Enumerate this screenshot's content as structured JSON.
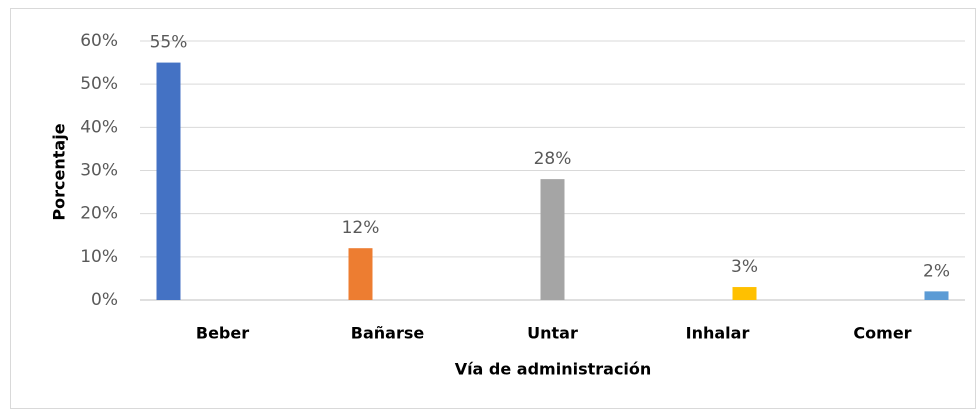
{
  "chart_data": {
    "type": "bar",
    "categories": [
      "Beber",
      "Bañarse",
      "Untar",
      "Inhalar",
      "Comer"
    ],
    "x_label": "Vía de administración",
    "y_label": "Porcentaje",
    "series": [
      {
        "color": "#4472c4",
        "values": [
          55,
          null,
          null,
          null,
          null
        ],
        "value_labels": [
          "55%",
          null,
          null,
          null,
          null
        ]
      },
      {
        "color": "#ed7d31",
        "values": [
          null,
          12,
          null,
          null,
          null
        ],
        "value_labels": [
          null,
          "12%",
          null,
          null,
          null
        ]
      },
      {
        "color": "#a5a5a5",
        "values": [
          null,
          null,
          28,
          null,
          null
        ],
        "value_labels": [
          null,
          null,
          "28%",
          null,
          null
        ]
      },
      {
        "color": "#ffc000",
        "values": [
          null,
          null,
          null,
          3,
          null
        ],
        "value_labels": [
          null,
          null,
          null,
          "3%",
          null
        ]
      },
      {
        "color": "#5b9bd5",
        "values": [
          null,
          null,
          null,
          null,
          2
        ],
        "value_labels": [
          null,
          null,
          null,
          null,
          "2%"
        ]
      }
    ],
    "ylim": [
      0,
      60
    ],
    "yticks": [
      {
        "value": 0,
        "label": "0%"
      },
      {
        "value": 10,
        "label": "10%"
      },
      {
        "value": 20,
        "label": "20%"
      },
      {
        "value": 30,
        "label": "30%"
      },
      {
        "value": 40,
        "label": "40%"
      },
      {
        "value": 50,
        "label": "50%"
      },
      {
        "value": 60,
        "label": "60%"
      }
    ],
    "grid": true
  }
}
